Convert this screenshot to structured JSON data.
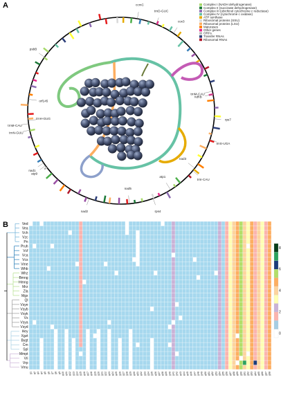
{
  "panelA": {
    "label": "A",
    "legend": [
      {
        "text": "Complex I (NADH dehydrogenase)",
        "color": "#a6d96a"
      },
      {
        "text": "Complex II (succinate dehydrogenase)",
        "color": "#1b7837"
      },
      {
        "text": "Complex III (ubichinol cytochrome c reductase)",
        "color": "#8c6bb1"
      },
      {
        "text": "Complex IV (cytochrome c oxidase)",
        "color": "#66c2a5"
      },
      {
        "text": "ATP synthase",
        "color": "#e6ab02"
      },
      {
        "text": "Ribosomal proteins (SSU)",
        "color": "#d9d9d9"
      },
      {
        "text": "Ribosomal proteins (LSU)",
        "color": "#fdae61"
      },
      {
        "text": "Maturases",
        "color": "#ff7f00"
      },
      {
        "text": "Other genes",
        "color": "#e7298a"
      },
      {
        "text": "ORFs",
        "color": "#bababa"
      },
      {
        "text": "Transfer RNAs",
        "color": "#2c3e7a"
      },
      {
        "text": "Ribosomal RNAs",
        "color": "#b2182b"
      }
    ],
    "genes": [
      {
        "text": "trnM-CAU",
        "angle": 78
      },
      {
        "text": "trnM-CAU",
        "angle": 262
      },
      {
        "text": "trnD-GUC",
        "angle": 22
      },
      {
        "text": "atp1",
        "angle": 148
      },
      {
        "text": "trnS-UGA",
        "angle": 108
      },
      {
        "text": "trnN-GUU",
        "angle": 258
      },
      {
        "text": "trnH-GUG",
        "angle": 264
      },
      {
        "text": "nad1",
        "angle": 236
      },
      {
        "text": "atp9",
        "angle": 234
      },
      {
        "text": "nad3",
        "angle": 128
      },
      {
        "text": "psbB",
        "angle": 305
      },
      {
        "text": "rps7",
        "angle": 95
      },
      {
        "text": "ndhB",
        "angle": 80
      },
      {
        "text": "cox3",
        "angle": 34
      },
      {
        "text": "ccmC",
        "angle": 10
      },
      {
        "text": "orf145",
        "angle": 277
      },
      {
        "text": "nad2",
        "angle": 200
      },
      {
        "text": "rps4",
        "angle": 160
      },
      {
        "text": "nad5",
        "angle": 175
      },
      {
        "text": "trnI-CAU",
        "angle": 130
      }
    ]
  },
  "panelB": {
    "label": "B",
    "rows": [
      "Ved",
      "Vea",
      "Vch",
      "Vzc",
      "Pn",
      "Pruh",
      "Vcf",
      "Vca",
      "Vcs",
      "Vme",
      "Whb",
      "Whz",
      "Bmng",
      "Hmng",
      "Mrz",
      "Zla",
      "Mgx",
      "Ql",
      "Vsye",
      "Vsyb",
      "Vsyk",
      "Vs",
      "Vsya",
      "Vsyd",
      "Hey",
      "Xgzt",
      "Bygt",
      "Cm",
      "Spl",
      "Mmpt",
      "Vri",
      "Vrp",
      "Vmu"
    ],
    "tree_colors": [
      "#6baed6",
      "#1f78b4",
      "#b2df8a",
      "#999999",
      "#a6cee3",
      "#cab2d6",
      "#000000"
    ],
    "colorbar_ticks": [
      "0",
      "2",
      "4",
      "6",
      "8"
    ],
    "colorbar_colors": [
      "#ffffff",
      "#a6cee3",
      "#fbb4ae",
      "#cab2d6",
      "#ffffb3",
      "#fdd49e",
      "#fdae61",
      "#b3de69",
      "#1d3c7a",
      "#2ca25f",
      "#083d1b"
    ]
  }
}
